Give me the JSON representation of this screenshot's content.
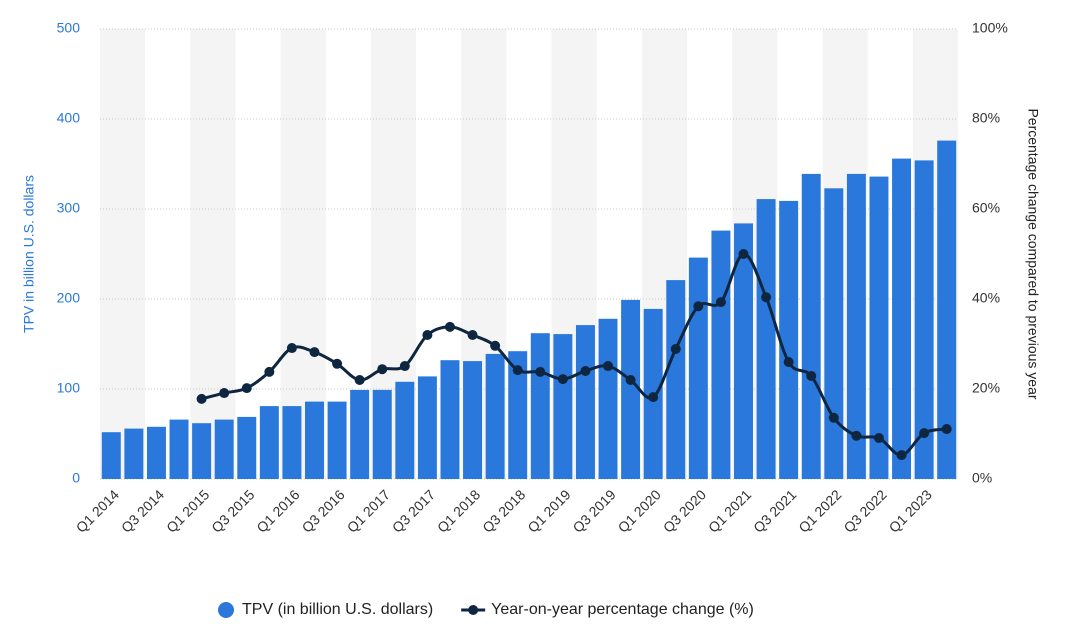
{
  "chart_data": {
    "type": "bar_line",
    "categories": [
      "Q1 2014",
      null,
      "Q3 2014",
      null,
      "Q1 2015",
      null,
      "Q3 2015",
      null,
      "Q1 2016",
      null,
      "Q3 2016",
      null,
      "Q1 2017",
      null,
      "Q3 2017",
      null,
      "Q1 2018",
      null,
      "Q3 2018",
      null,
      "Q1 2019",
      null,
      "Q3 2019",
      null,
      "Q1 2020",
      null,
      "Q3 2020",
      null,
      "Q1 2021",
      null,
      "Q3 2021",
      null,
      "Q1 2022",
      null,
      "Q3 2022",
      null,
      "Q1 2023",
      null
    ],
    "series": [
      {
        "name": "TPV (in billion U.S. dollars)",
        "color": "#2a78dc",
        "type": "bar",
        "values": [
          52,
          56,
          58,
          66,
          62,
          66,
          69,
          81,
          81,
          86,
          86,
          99,
          99,
          108,
          114,
          132,
          131,
          139,
          142,
          162,
          161,
          171,
          178,
          199,
          189,
          221,
          246,
          276,
          284,
          311,
          309,
          339,
          323,
          339,
          336,
          356,
          354,
          376
        ]
      },
      {
        "name": "Year-on-year percentage change (%)",
        "color": "#0f2640",
        "type": "line",
        "axis": "y2",
        "values": [
          null,
          null,
          null,
          null,
          17.8,
          19.1,
          20.2,
          23.8,
          29.1,
          28.2,
          25.6,
          22,
          24.4,
          25.1,
          32,
          33.8,
          32,
          29.6,
          24.2,
          23.8,
          22.2,
          24,
          25.1,
          22,
          18.2,
          28.9,
          38.4,
          39.3,
          50,
          40.4,
          26,
          22.9,
          13.6,
          9.6,
          9.1,
          5.3,
          10.2,
          11.1
        ]
      }
    ],
    "ylabel": "TPV in billion U.S. dollars",
    "y2label": "Percentage change compared to previous year",
    "ylim": [
      0,
      500
    ],
    "yticks": [
      0,
      100,
      200,
      300,
      400,
      500
    ],
    "y2lim": [
      0,
      100
    ],
    "y2ticks": [
      {
        "value": 0,
        "label": "0%"
      },
      {
        "value": 20,
        "label": "20%"
      },
      {
        "value": 40,
        "label": "40%"
      },
      {
        "value": 60,
        "label": "60%"
      },
      {
        "value": 80,
        "label": "80%"
      },
      {
        "value": 100,
        "label": "100%"
      }
    ],
    "grid": true,
    "legend": "bottom"
  }
}
